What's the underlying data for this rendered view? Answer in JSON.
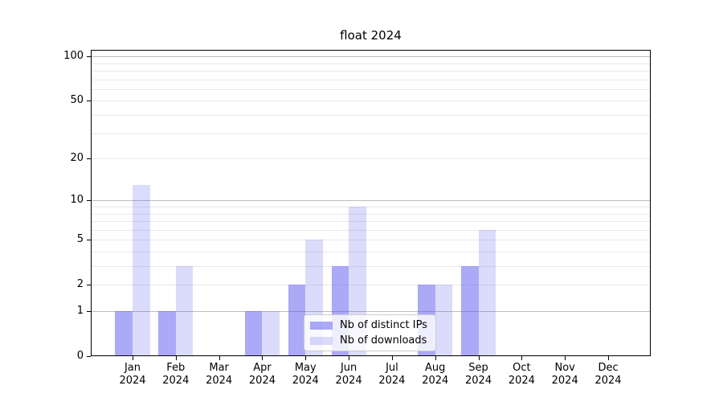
{
  "title": "float 2024",
  "chart_data": {
    "type": "bar",
    "title": "float 2024",
    "categories": [
      "Jan 2024",
      "Feb 2024",
      "Mar 2024",
      "Apr 2024",
      "May 2024",
      "Jun 2024",
      "Jul 2024",
      "Aug 2024",
      "Sep 2024",
      "Oct 2024",
      "Nov 2024",
      "Dec 2024"
    ],
    "series": [
      {
        "name": "Nb of distinct IPs",
        "color": "rgba(85,85,238,0.5)",
        "values": [
          1,
          1,
          0,
          1,
          2,
          3,
          0,
          2,
          3,
          0,
          0,
          0
        ]
      },
      {
        "name": "Nb of downloads",
        "color": "rgba(85,85,238,0.21)",
        "values": [
          13,
          3,
          0,
          1,
          5,
          9,
          0,
          2,
          6,
          0,
          0,
          0
        ]
      }
    ],
    "xlabel": "",
    "ylabel": "",
    "yscale": "log1p",
    "ylim": [
      0,
      111
    ],
    "yticks": [
      0,
      1,
      2,
      5,
      10,
      20,
      50,
      100
    ],
    "major_gridlines": [
      1,
      10,
      100
    ],
    "minor_gridlines": [
      2,
      3,
      4,
      5,
      6,
      7,
      8,
      9,
      20,
      30,
      40,
      50,
      60,
      70,
      80,
      90
    ],
    "grid": true,
    "legend_position": "lower center"
  },
  "colors": {
    "major_grid": "#bdbdbd",
    "minor_grid": "#e8e8e8",
    "spine": "#000000",
    "background": "#ffffff"
  }
}
